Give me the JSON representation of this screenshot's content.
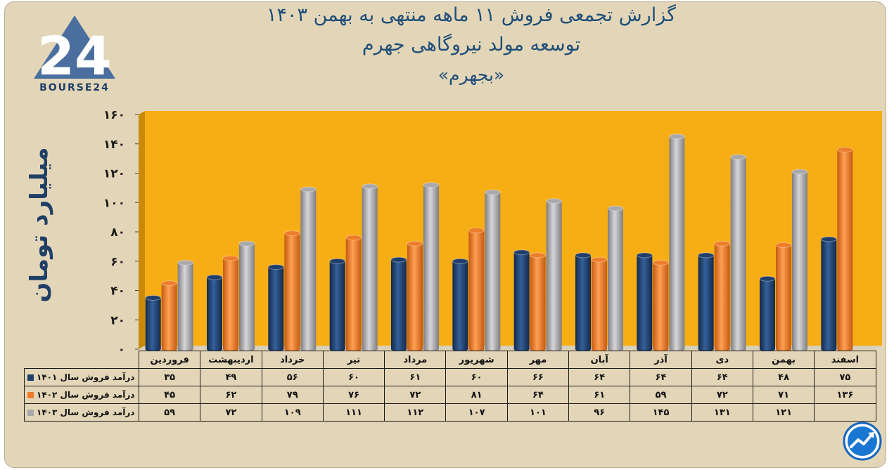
{
  "header": {
    "title_line1": "گزارش تجمعی فروش ۱۱ ماهه منتهی به بهمن ۱۴۰۳",
    "title_line2": "توسعه مولد نیروگاهی جهرم",
    "title_line3": "«بجهرم»"
  },
  "logo": {
    "text": "BOURSE24",
    "mark": "24"
  },
  "colors": {
    "s1401": "#1f3e6b",
    "s1402": "#ee7d2a",
    "s1403": "#a9a9ab",
    "plot_bg": "#f7ad14"
  },
  "chart_data": {
    "type": "bar",
    "title": "گزارش تجمعی فروش ۱۱ ماهه منتهی به بهمن ۱۴۰۳",
    "ylabel": "میلیارد تومان",
    "ylim": [
      0,
      160
    ],
    "yticks": [
      "۰",
      "۲۰",
      "۴۰",
      "۶۰",
      "۸۰",
      "۱۰۰",
      "۱۲۰",
      "۱۴۰",
      "۱۶۰"
    ],
    "categories": [
      "فروردین",
      "اردیبهشت",
      "خرداد",
      "تیر",
      "مرداد",
      "شهریور",
      "مهر",
      "آبان",
      "آذر",
      "دی",
      "بهمن",
      "اسفند"
    ],
    "series": [
      {
        "name": "درآمد فروش سال ۱۴۰۱",
        "values": [
          35,
          49,
          56,
          60,
          61,
          60,
          66,
          64,
          64,
          64,
          48,
          75
        ],
        "labels": [
          "۳۵",
          "۴۹",
          "۵۶",
          "۶۰",
          "۶۱",
          "۶۰",
          "۶۶",
          "۶۴",
          "۶۴",
          "۶۴",
          "۴۸",
          "۷۵"
        ]
      },
      {
        "name": "درآمد فروش سال ۱۴۰۲",
        "values": [
          45,
          62,
          79,
          76,
          72,
          81,
          64,
          61,
          59,
          72,
          71,
          136
        ],
        "labels": [
          "۴۵",
          "۶۲",
          "۷۹",
          "۷۶",
          "۷۲",
          "۸۱",
          "۶۴",
          "۶۱",
          "۵۹",
          "۷۲",
          "۷۱",
          "۱۳۶"
        ]
      },
      {
        "name": "درآمد فروش سال ۱۴۰۳",
        "values": [
          59,
          72,
          109,
          111,
          112,
          107,
          101,
          96,
          145,
          131,
          121,
          null
        ],
        "labels": [
          "۵۹",
          "۷۲",
          "۱۰۹",
          "۱۱۱",
          "۱۱۲",
          "۱۰۷",
          "۱۰۱",
          "۹۶",
          "۱۴۵",
          "۱۳۱",
          "۱۲۱",
          ""
        ]
      }
    ],
    "grid": false,
    "legend": "table-left"
  }
}
